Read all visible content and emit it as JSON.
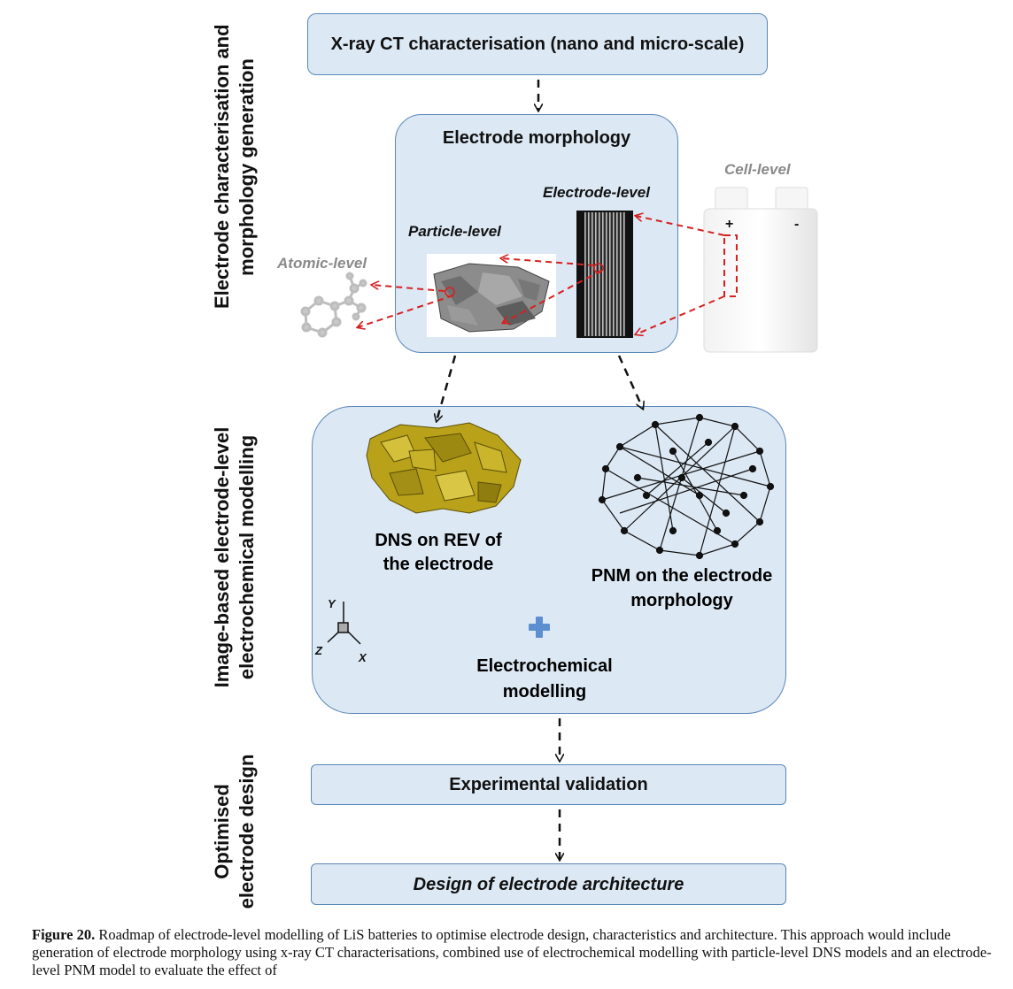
{
  "side_labels": {
    "section1_line1": "Electrode characterisation and",
    "section1_line2": "morphology generation",
    "section2_line1": "Image-based electrode-level",
    "section2_line2": "electrochemical  modelling",
    "section3_line1": "Optimised",
    "section3_line2": "electrode design"
  },
  "boxes": {
    "xray": "X-ray CT characterisation (nano and micro-scale)",
    "morphology_title": "Electrode morphology",
    "dns_line1": "DNS on REV of",
    "dns_line2": "the electrode",
    "pnm_line1": "PNM on the electrode",
    "pnm_line2": "morphology",
    "electrochem_line1": "Electrochemical",
    "electrochem_line2": "modelling",
    "validation": "Experimental validation",
    "design": "Design of electrode architecture"
  },
  "levels": {
    "electrode": "Electrode-level",
    "particle": "Particle-level",
    "atomic": "Atomic-level",
    "cell": "Cell-level"
  },
  "cell_terminals": {
    "plus": "+",
    "minus": "-"
  },
  "axes": {
    "x": "X",
    "y": "Y",
    "z": "Z"
  },
  "caption": {
    "label": "Figure 20.",
    "text": " Roadmap of electrode-level modelling of LiS batteries to optimise electrode design, characteristics and architecture. This approach would include generation of electrode morphology using x-ray CT characterisations, combined use of electrochemical modelling with particle-level DNS models and an electrode-level PNM model to evaluate the effect of"
  },
  "colors": {
    "box_fill": "#dce8f4",
    "box_border": "#5b87b8",
    "red_arrow": "#d62020",
    "plus_icon": "#5b8fcf",
    "dns_gold": "#b9a21a"
  }
}
